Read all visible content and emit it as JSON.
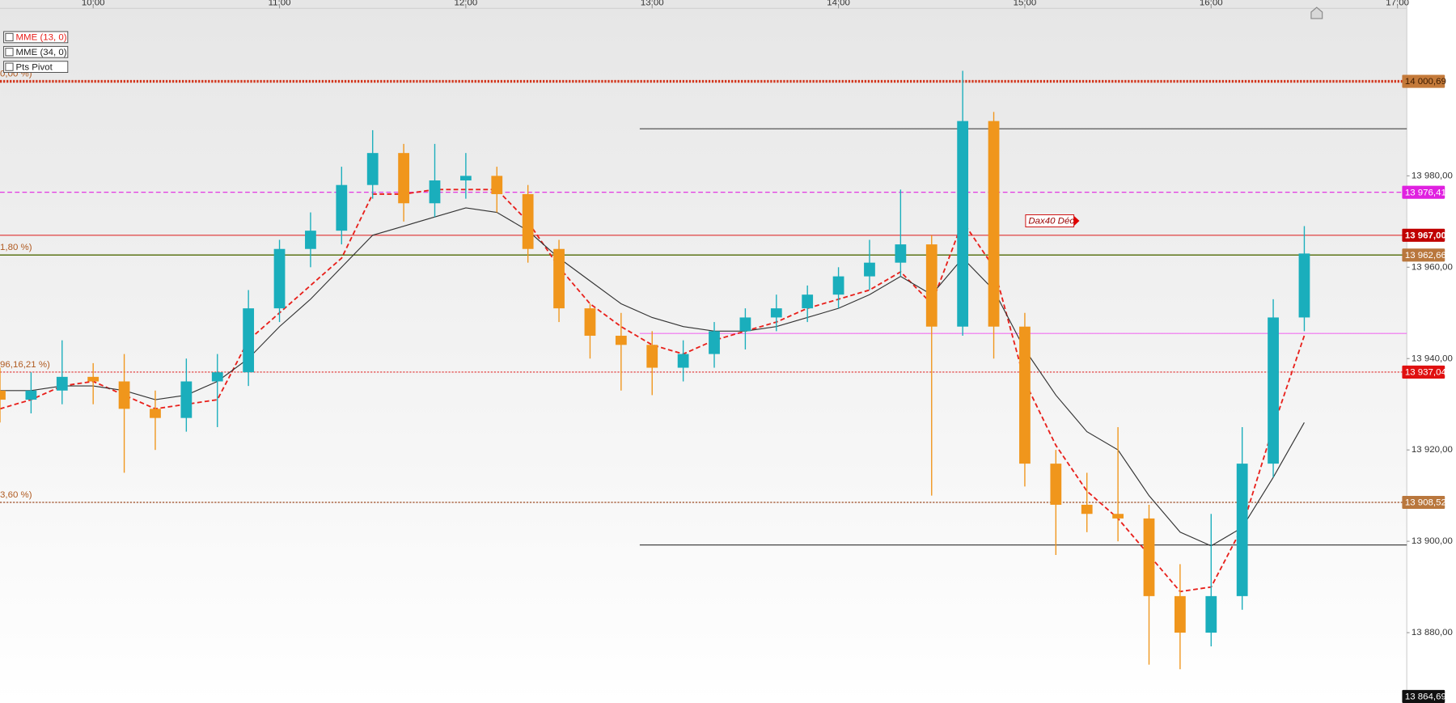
{
  "chart_data": {
    "type": "candlestick",
    "xlim": [
      "09:30",
      "17:03"
    ],
    "xticks": [
      "10:00",
      "11:00",
      "12:00",
      "13:00",
      "14:00",
      "15:00",
      "16:00",
      "17:00"
    ],
    "ylim": [
      13864.6,
      14018.5
    ],
    "yticks": [
      {
        "value": 13880,
        "label": "13 880,00"
      },
      {
        "value": 13900,
        "label": "13 900,00"
      },
      {
        "value": 13920,
        "label": "13 920,00"
      },
      {
        "value": 13940,
        "label": "13 940,00"
      },
      {
        "value": 13960,
        "label": "13 960,00"
      },
      {
        "value": 13980,
        "label": "13 980,00"
      }
    ],
    "up_color": "#1aaebc",
    "down_color": "#f0961c",
    "candles": {
      "x": [
        "09:30",
        "09:40",
        "09:50",
        "10:00",
        "10:10",
        "10:20",
        "10:30",
        "10:40",
        "10:50",
        "11:00",
        "11:10",
        "11:20",
        "11:30",
        "11:40",
        "11:50",
        "12:00",
        "12:10",
        "12:20",
        "12:30",
        "12:40",
        "12:50",
        "13:00",
        "13:10",
        "13:20",
        "13:30",
        "13:40",
        "13:50",
        "14:00",
        "14:10",
        "14:20",
        "14:30",
        "14:40",
        "14:50",
        "15:00",
        "15:10",
        "15:20",
        "15:30",
        "15:40",
        "15:50",
        "16:00",
        "16:10",
        "16:20",
        "16:30"
      ],
      "open": [
        13933,
        13931,
        13933,
        13936,
        13935,
        13929,
        13927,
        13935,
        13937,
        13951,
        13964,
        13968,
        13978,
        13985,
        13974,
        13979,
        13980,
        13976,
        13964,
        13951,
        13945,
        13943,
        13938,
        13941,
        13946,
        13949,
        13951,
        13954,
        13958,
        13961,
        13965,
        13947,
        13992,
        13947,
        13917,
        13908,
        13906,
        13905,
        13888,
        13880,
        13888,
        13917,
        13949
      ],
      "high": [
        13938,
        13937,
        13944,
        13939,
        13941,
        13933,
        13940,
        13941,
        13955,
        13966,
        13972,
        13982,
        13990,
        13987,
        13987,
        13985,
        13982,
        13978,
        13966,
        13952,
        13950,
        13946,
        13944,
        13948,
        13951,
        13954,
        13956,
        13960,
        13966,
        13977,
        13967,
        14003,
        13994,
        13950,
        13920,
        13915,
        13925,
        13908,
        13895,
        13906,
        13925,
        13953,
        13969
      ],
      "low": [
        13926,
        13928,
        13930,
        13930,
        13915,
        13920,
        13924,
        13925,
        13934,
        13948,
        13960,
        13965,
        13975,
        13970,
        13971,
        13975,
        13972,
        13961,
        13948,
        13940,
        13933,
        13932,
        13935,
        13938,
        13942,
        13946,
        13948,
        13951,
        13955,
        13958,
        13910,
        13945,
        13940,
        13912,
        13897,
        13902,
        13900,
        13873,
        13872,
        13877,
        13885,
        13914,
        13946
      ],
      "close": [
        13931,
        13933,
        13936,
        13935,
        13929,
        13927,
        13935,
        13937,
        13951,
        13964,
        13968,
        13978,
        13985,
        13974,
        13979,
        13980,
        13976,
        13964,
        13951,
        13945,
        13943,
        13938,
        13941,
        13946,
        13949,
        13951,
        13954,
        13958,
        13961,
        13965,
        13947,
        13992,
        13947,
        13917,
        13908,
        13906,
        13905,
        13888,
        13880,
        13888,
        13917,
        13949,
        13963
      ]
    },
    "series": [
      {
        "name": "MME (13, 0)",
        "color": "#e8201b",
        "dashed": true,
        "values": [
          13929,
          13931,
          13934,
          13935,
          13932,
          13929,
          13930,
          13931,
          13944,
          13950,
          13956,
          13962,
          13976,
          13976,
          13977,
          13977,
          13977,
          13970,
          13960,
          13952,
          13947,
          13943,
          13941,
          13944,
          13946,
          13948,
          13951,
          13953,
          13955,
          13959,
          13952,
          13970,
          13960,
          13935,
          13921,
          13911,
          13905,
          13897,
          13889,
          13890,
          13903,
          13925,
          13945
        ]
      },
      {
        "name": "MME (34, 0)",
        "color": "#333333",
        "dashed": false,
        "values": [
          13933,
          13933,
          13934,
          13934,
          13933,
          13931,
          13932,
          13935,
          13940,
          13947,
          13953,
          13960,
          13967,
          13969,
          13971,
          13973,
          13972,
          13968,
          13962,
          13957,
          13952,
          13949,
          13947,
          13946,
          13946,
          13947,
          13949,
          13951,
          13954,
          13958,
          13954,
          13962,
          13955,
          13942,
          13932,
          13924,
          13920,
          13910,
          13902,
          13899,
          13903,
          13914,
          13926
        ]
      }
    ],
    "legend_extra": [
      "Pts Pivot"
    ],
    "levels": [
      {
        "value": 14000.69,
        "label": "14 000,69",
        "left_label": "0,00 %)",
        "color": "#d2351c",
        "style": "dotted",
        "box": "#c47a3a",
        "text_color": "#3a1a00"
      },
      {
        "value": 13990.3,
        "color": "#444444",
        "style": "solid",
        "from": "12:56"
      },
      {
        "value": 13976.41,
        "label": "13 976,41",
        "color": "#e020e0",
        "style": "dashed",
        "box": "#e020e0",
        "text_color": "#ffffff"
      },
      {
        "value": 13967.0,
        "label": "13 967,00",
        "color": "#e26060",
        "style": "solid",
        "box": "#c00000",
        "text_color": "#ffffff"
      },
      {
        "value": 13962.66,
        "label": "13 962,66",
        "left_label": "1,80 %)",
        "color": "#5c7418",
        "style": "solid",
        "box": "#b9773d",
        "text_color": "#ffffff"
      },
      {
        "value": 13945.5,
        "color": "#f070f0",
        "style": "solid",
        "from": "12:56"
      },
      {
        "value": 13937.04,
        "label": "13 937,04",
        "left_label": "96,16,21 %)",
        "color": "#e03030",
        "style": "dotted",
        "box": "#e01010",
        "text_color": "#ffffff"
      },
      {
        "value": 13908.52,
        "label": "13 908,52",
        "left_label": "3,60 %)",
        "color": "#9c4a22",
        "style": "dotted",
        "box": "#b9773d",
        "text_color": "#ffffff"
      },
      {
        "value": 13899.2,
        "color": "#444444",
        "style": "solid",
        "from": "12:56"
      },
      {
        "value": 13864.69,
        "label": "13 864,69",
        "color": "none",
        "style": "none",
        "box": "#111111",
        "text_color": "#ffffff"
      }
    ],
    "annotation": {
      "text": "Dax40 Déc",
      "x": "15:17",
      "y": 13967.0
    }
  }
}
